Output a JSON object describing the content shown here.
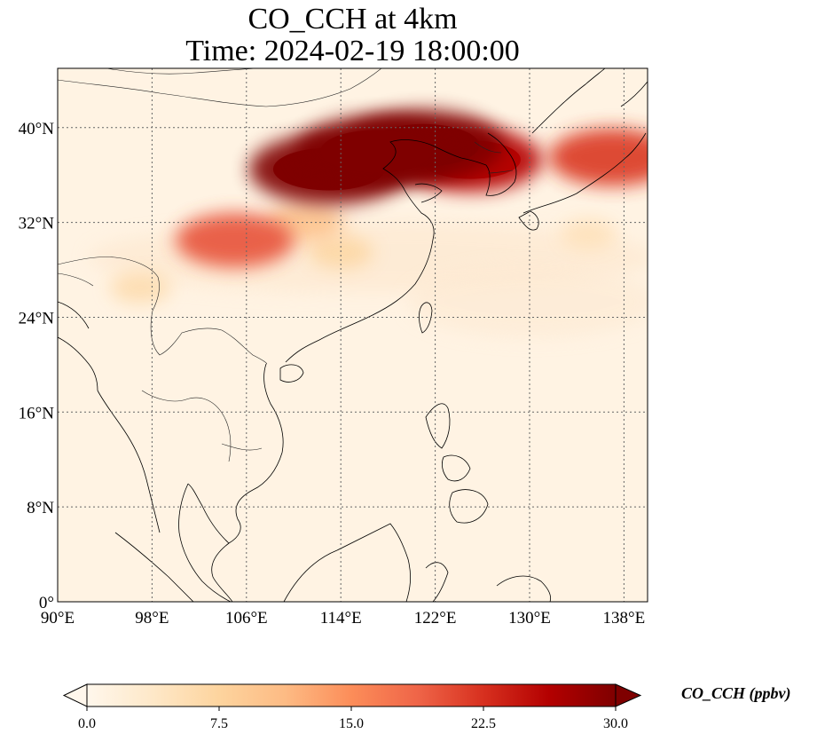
{
  "title_line1": "CO_CCH at 4km",
  "title_line2": "Time: 2024-02-19 18:00:00",
  "map": {
    "lon_range": [
      90,
      140
    ],
    "lat_range": [
      0,
      45
    ],
    "lon_ticks": [
      90,
      98,
      106,
      114,
      122,
      130,
      138
    ],
    "lat_ticks": [
      0,
      8,
      16,
      24,
      32,
      40
    ],
    "lon_tick_labels": [
      "90°E",
      "98°E",
      "106°E",
      "114°E",
      "122°E",
      "130°E",
      "138°E"
    ],
    "lat_tick_labels": [
      "0°",
      "8°N",
      "16°N",
      "24°N",
      "32°N",
      "40°N"
    ],
    "gridlines": true,
    "gridline_style": "dotted",
    "plumes": [
      {
        "lon": 117,
        "lat": 38.0,
        "value": 32
      },
      {
        "lon": 113,
        "lat": 36.5,
        "value": 30
      },
      {
        "lon": 121,
        "lat": 38.5,
        "value": 30
      },
      {
        "lon": 125,
        "lat": 37.3,
        "value": 26
      },
      {
        "lon": 137,
        "lat": 37.5,
        "value": 22
      },
      {
        "lon": 105,
        "lat": 30.5,
        "value": 20
      },
      {
        "lon": 111,
        "lat": 32.0,
        "value": 10
      },
      {
        "lon": 114,
        "lat": 29.5,
        "value": 7
      },
      {
        "lon": 135,
        "lat": 31.0,
        "value": 5
      },
      {
        "lon": 97,
        "lat": 26.5,
        "value": 6
      }
    ],
    "colormap": "OrRd"
  },
  "colorbar": {
    "label": "CO_CCH (ppbv)",
    "min": 0.0,
    "max": 30.0,
    "ticks": [
      0.0,
      7.5,
      15.0,
      22.5,
      30.0
    ],
    "tick_labels": [
      "0.0",
      "7.5",
      "15.0",
      "22.5",
      "30.0"
    ],
    "extend": "both",
    "colors": [
      "#fff7ec",
      "#fee8c8",
      "#fdd49e",
      "#fdbb84",
      "#fc8d59",
      "#ef6548",
      "#d7301f",
      "#b30000",
      "#7f0000"
    ]
  }
}
